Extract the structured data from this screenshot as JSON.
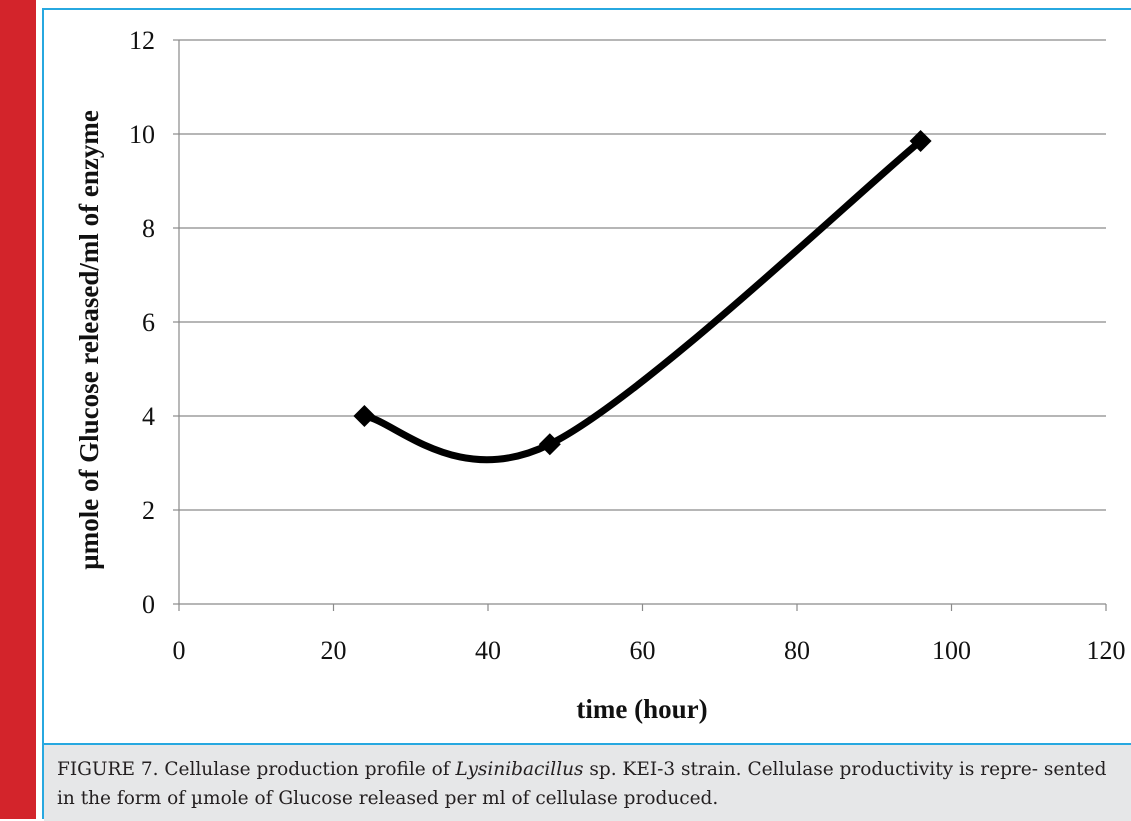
{
  "chart_data": {
    "type": "line",
    "xlabel": "time (hour)",
    "ylabel": "µmole of Glucose released/ml of enzyme",
    "xlim": [
      0,
      120
    ],
    "ylim": [
      0,
      12
    ],
    "xticks": [
      "0",
      "20",
      "40",
      "60",
      "80",
      "100",
      "120"
    ],
    "yticks": [
      "0",
      "2",
      "4",
      "6",
      "8",
      "10",
      "12"
    ],
    "grid": "horizontal",
    "marker": "diamond",
    "smooth": true,
    "series": [
      {
        "x": [
          24,
          48,
          96
        ],
        "values": [
          4.0,
          3.4,
          9.85
        ]
      }
    ]
  },
  "caption": {
    "prefix": "FIGURE 7. Cellulase production profile of ",
    "organism": "Lysinibacillus",
    "suffix": " sp. KEI-3 strain. Cellulase productivity is repre- sented in the form of µmole of Glucose released per ml of cellulase produced."
  },
  "colors": {
    "accent_bar": "#d3242b",
    "frame": "#27a8e0",
    "caption_bg": "#e6e7e8"
  }
}
